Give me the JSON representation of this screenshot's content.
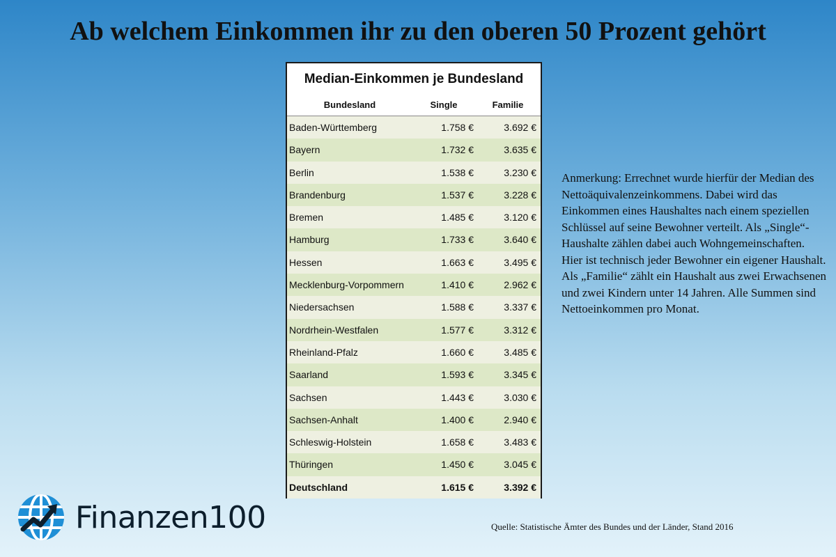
{
  "title": "Ab welchem Einkommen ihr zu den oberen 50 Prozent gehört",
  "note": "Anmerkung: Errechnet wurde hierfür der Median des Nettoäquivalenzeinkommens. Dabei wird das Einkommen eines Haushaltes nach einem speziellen Schlüssel auf seine Bewohner verteilt. Als „Single“-Haushalte zählen dabei auch Wohngemeinschaften. Hier ist technisch jeder Bewohner ein eigener Haushalt. Als „Familie“ zählt ein Haushalt aus zwei Erwachsenen und zwei Kindern unter 14 Jahren. Alle Summen sind Nettoeinkommen pro Monat.",
  "source": "Quelle: Statistische Ämter des Bundes und der Länder, Stand 2016",
  "logo": {
    "text": "Finanzen100",
    "icon": "globe-chart-icon",
    "color": "#1f8fd6"
  },
  "chart_data": {
    "type": "table",
    "title": "Median-Einkommen je Bundesland",
    "columns": [
      "Bundesland",
      "Single",
      "Familie"
    ],
    "rows": [
      [
        "Baden-Württemberg",
        "1.758 €",
        "3.692 €"
      ],
      [
        "Bayern",
        "1.732 €",
        "3.635 €"
      ],
      [
        "Berlin",
        "1.538 €",
        "3.230 €"
      ],
      [
        "Brandenburg",
        "1.537 €",
        "3.228 €"
      ],
      [
        "Bremen",
        "1.485 €",
        "3.120 €"
      ],
      [
        "Hamburg",
        "1.733 €",
        "3.640 €"
      ],
      [
        "Hessen",
        "1.663 €",
        "3.495 €"
      ],
      [
        "Mecklenburg-Vorpommern",
        "1.410 €",
        "2.962 €"
      ],
      [
        "Niedersachsen",
        "1.588 €",
        "3.337 €"
      ],
      [
        "Nordrhein-Westfalen",
        "1.577 €",
        "3.312 €"
      ],
      [
        "Rheinland-Pfalz",
        "1.660 €",
        "3.485 €"
      ],
      [
        "Saarland",
        "1.593 €",
        "3.345 €"
      ],
      [
        "Sachsen",
        "1.443 €",
        "3.030 €"
      ],
      [
        "Sachsen-Anhalt",
        "1.400 €",
        "2.940 €"
      ],
      [
        "Schleswig-Holstein",
        "1.658 €",
        "3.483 €"
      ],
      [
        "Thüringen",
        "1.450 €",
        "3.045 €"
      ]
    ],
    "total": [
      "Deutschland",
      "1.615 €",
      "3.392 €"
    ],
    "row_colors": [
      "#eef0e1",
      "#dde8c7"
    ]
  }
}
